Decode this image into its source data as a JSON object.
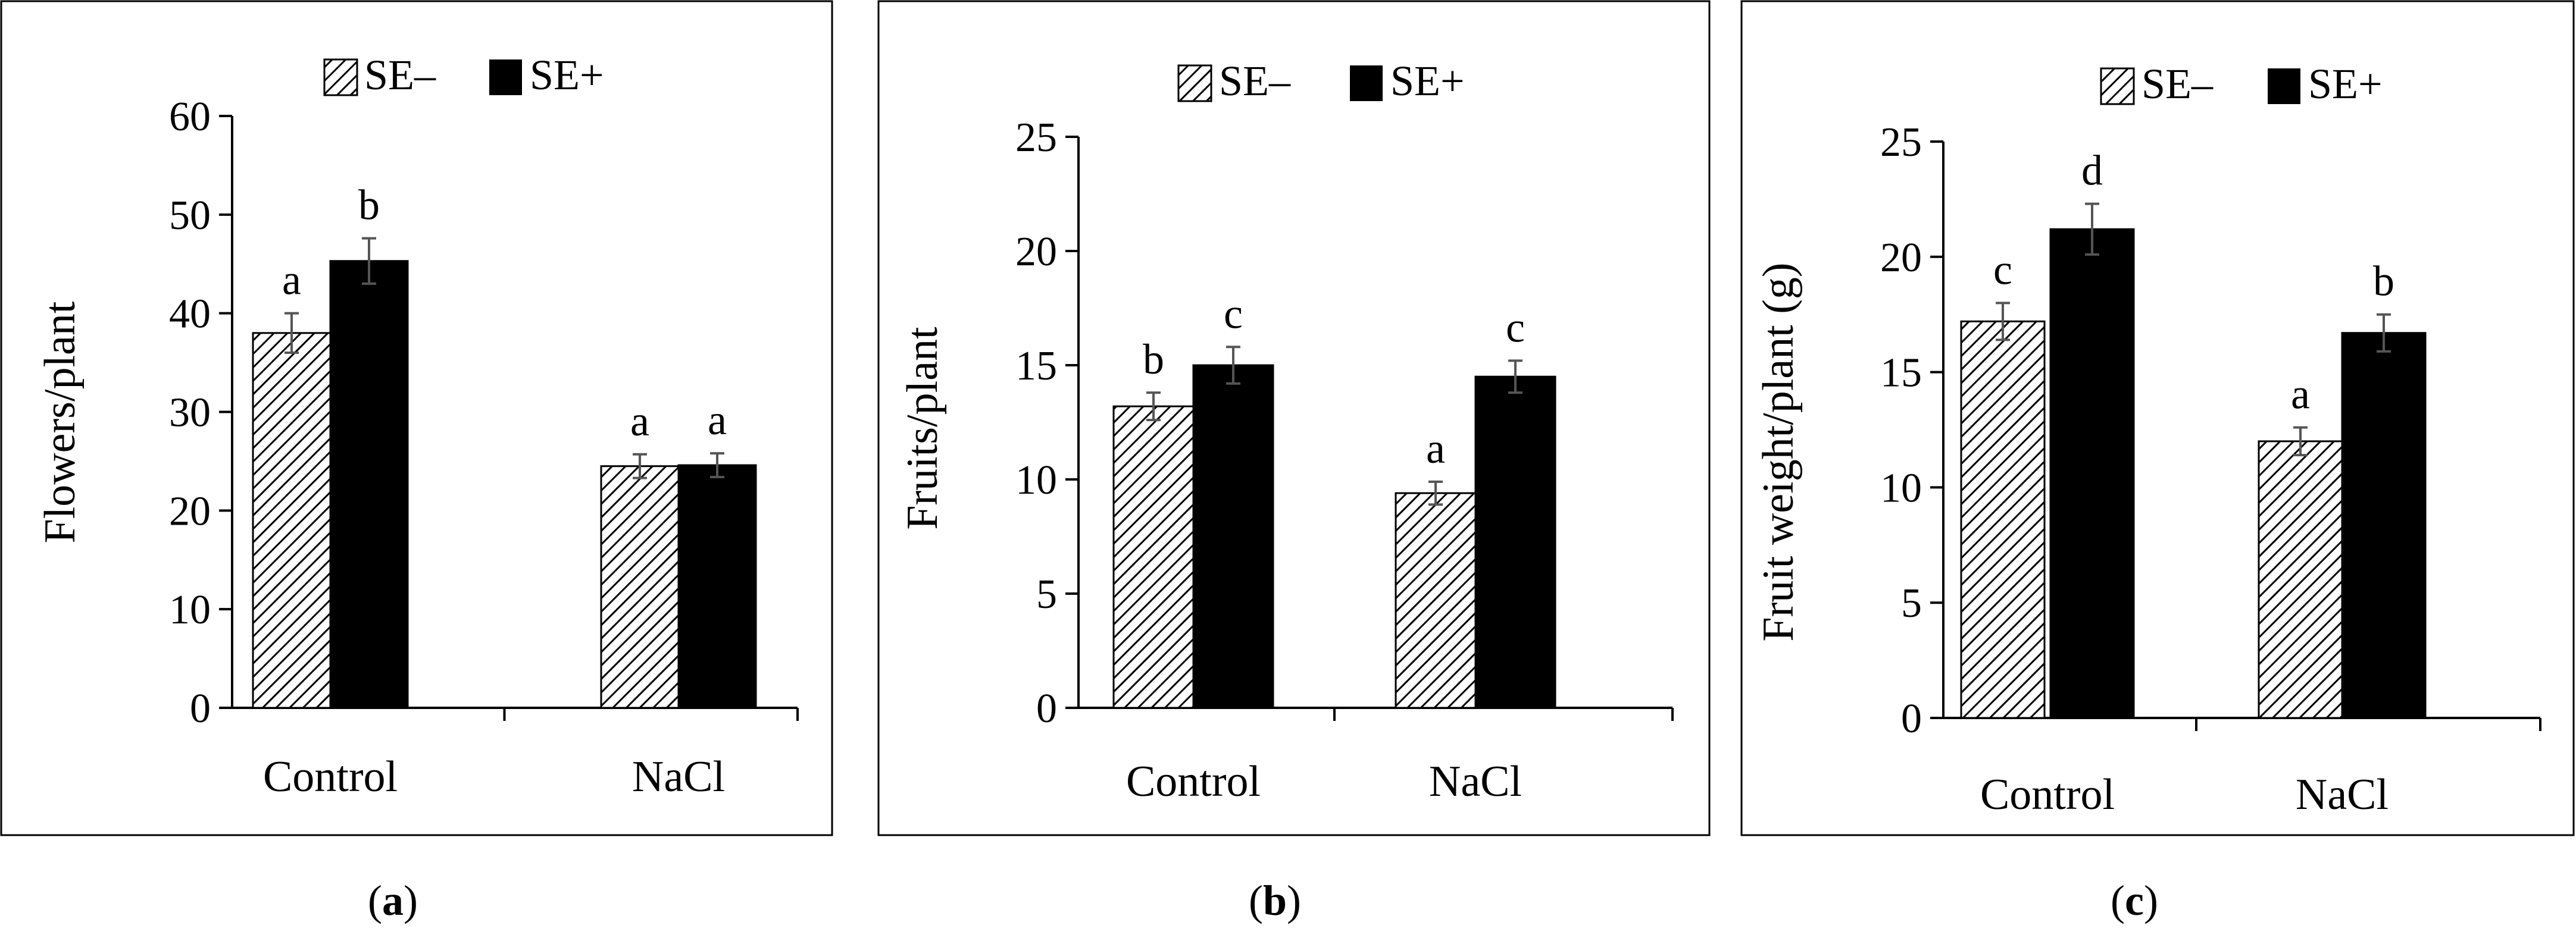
{
  "colors": {
    "se_minus_fill": "#ffffff",
    "se_minus_hatch": "#000000",
    "se_plus_fill": "#000000",
    "axis": "#000000",
    "error_bar": "#555555"
  },
  "legend": {
    "se_minus_label": "SE–",
    "se_plus_label": "SE+",
    "position": "top-center"
  },
  "chart_data": [
    {
      "type": "bar",
      "panel_label": "(a)",
      "ylabel": "Flowers/plant",
      "xlabel": "",
      "categories": [
        "Control",
        "NaCl"
      ],
      "ylim": [
        0,
        60
      ],
      "yticks": [
        "0",
        "10",
        "20",
        "30",
        "40",
        "50",
        "60"
      ],
      "series": [
        {
          "name": "SE–",
          "values": [
            38,
            24.5
          ],
          "errors": [
            2,
            1.2
          ],
          "letters": [
            "a",
            "a"
          ]
        },
        {
          "name": "SE+",
          "values": [
            45.3,
            24.6
          ],
          "errors": [
            2.3,
            1.2
          ],
          "letters": [
            "b",
            "a"
          ]
        }
      ]
    },
    {
      "type": "bar",
      "panel_label": "(b)",
      "ylabel": "Fruits/plant",
      "xlabel": "",
      "categories": [
        "Control",
        "NaCl"
      ],
      "ylim": [
        0,
        25
      ],
      "yticks": [
        "0",
        "5",
        "10",
        "15",
        "20",
        "25"
      ],
      "series": [
        {
          "name": "SE–",
          "values": [
            13.2,
            9.4
          ],
          "errors": [
            0.6,
            0.5
          ],
          "letters": [
            "b",
            "a"
          ]
        },
        {
          "name": "SE+",
          "values": [
            15,
            14.5
          ],
          "errors": [
            0.8,
            0.7
          ],
          "letters": [
            "c",
            "c"
          ]
        }
      ]
    },
    {
      "type": "bar",
      "panel_label": "(c)",
      "ylabel": "Fruit weight/plant (g)",
      "xlabel": "",
      "categories": [
        "Control",
        "NaCl"
      ],
      "ylim": [
        0,
        25
      ],
      "yticks": [
        "0",
        "5",
        "10",
        "15",
        "20",
        "25"
      ],
      "series": [
        {
          "name": "SE–",
          "values": [
            17.2,
            12
          ],
          "errors": [
            0.8,
            0.6
          ],
          "letters": [
            "c",
            "a"
          ]
        },
        {
          "name": "SE+",
          "values": [
            21.2,
            16.7
          ],
          "errors": [
            1.1,
            0.8
          ],
          "letters": [
            "d",
            "b"
          ]
        }
      ]
    }
  ]
}
